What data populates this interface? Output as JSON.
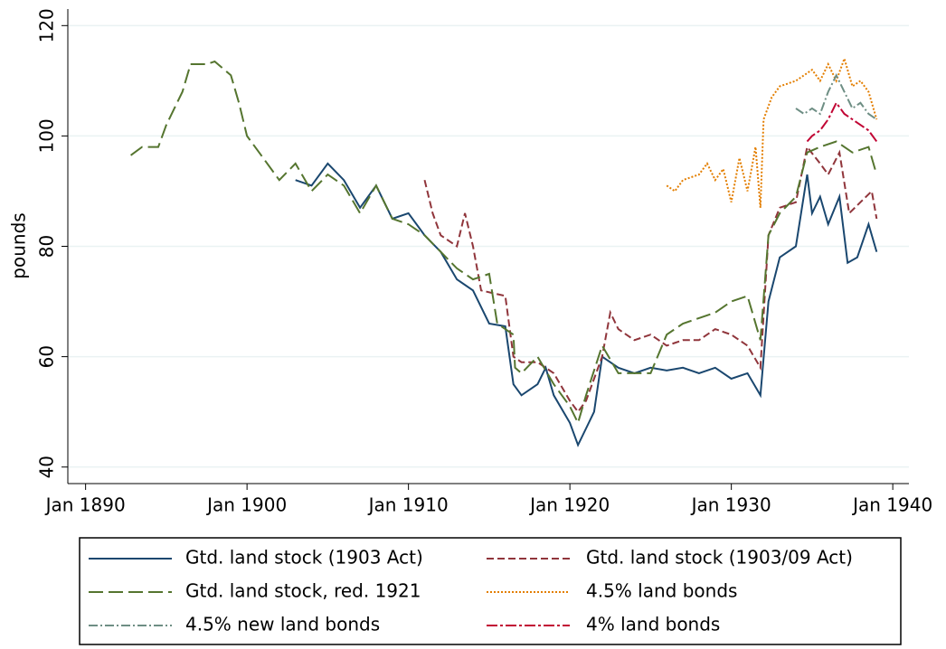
{
  "chart_data": {
    "type": "line",
    "ylabel": "pounds",
    "xlim": [
      1888.9,
      1941
    ],
    "ylim": [
      37,
      123
    ],
    "xticks": [
      {
        "value": 1890,
        "label": "Jan 1890"
      },
      {
        "value": 1900,
        "label": "Jan 1900"
      },
      {
        "value": 1910,
        "label": "Jan 1910"
      },
      {
        "value": 1920,
        "label": "Jan 1920"
      },
      {
        "value": 1930,
        "label": "Jan 1930"
      },
      {
        "value": 1940,
        "label": "Jan 1940"
      }
    ],
    "yticks": [
      40,
      60,
      80,
      100,
      120
    ],
    "grid": true,
    "series": [
      {
        "name": "Gtd. land stock (1903 Act)",
        "color": "#1a476f",
        "dash": "none",
        "x": [
          1903,
          1904,
          1905,
          1906,
          1907,
          1908,
          1909,
          1910,
          1911,
          1912,
          1913,
          1914,
          1915,
          1916,
          1916.5,
          1917,
          1918,
          1918.5,
          1919,
          1920,
          1920.5,
          1921,
          1921.5,
          1922,
          1923,
          1924,
          1925,
          1926,
          1927,
          1928,
          1929,
          1930,
          1931,
          1931.8,
          1932.3,
          1933,
          1934,
          1934.7,
          1935,
          1935.5,
          1936,
          1936.7,
          1937.2,
          1937.8,
          1938.5,
          1939
        ],
        "values": [
          92,
          91,
          95,
          92,
          87,
          91,
          85,
          86,
          82,
          79,
          74,
          72,
          66,
          65.5,
          55,
          53,
          55,
          58,
          53,
          48,
          44,
          47,
          50,
          60,
          58,
          57,
          58,
          57.5,
          58,
          57,
          58,
          56,
          57,
          53,
          70,
          78,
          80,
          93,
          86,
          89,
          84,
          89,
          77,
          78,
          84,
          79
        ]
      },
      {
        "name": "Gtd. land stock (1903/09 Act)",
        "color": "#90353b",
        "dash": "8,4",
        "x": [
          1911,
          1911.5,
          1912,
          1913,
          1913.5,
          1914,
          1914.5,
          1916,
          1916.5,
          1917,
          1918,
          1919,
          1920,
          1920.5,
          1921,
          1922,
          1922.5,
          1923,
          1924,
          1925,
          1926,
          1927,
          1928,
          1929,
          1930,
          1931,
          1931.8,
          1932.3,
          1933,
          1934,
          1934.7,
          1935.5,
          1936,
          1936.7,
          1937.3,
          1938,
          1938.7,
          1939
        ],
        "values": [
          92,
          86,
          82,
          80,
          86,
          80,
          72,
          71,
          60,
          59,
          59,
          57,
          52,
          50,
          52,
          60,
          68,
          65,
          63,
          64,
          62,
          63,
          63,
          65,
          64,
          62,
          58,
          82,
          87,
          88,
          98,
          95,
          93,
          97,
          86,
          88,
          90,
          85
        ]
      },
      {
        "name": "Gtd. land stock, red. 1921",
        "color": "#55752f",
        "dash": "16,6",
        "x": [
          1892.8,
          1893.5,
          1894.5,
          1895,
          1896,
          1896.5,
          1897.5,
          1898,
          1899,
          1899.5,
          1900,
          1901,
          1902,
          1903,
          1904,
          1905,
          1906,
          1907,
          1908,
          1909,
          1910,
          1911,
          1912,
          1913,
          1914,
          1915,
          1915.5,
          1916.5,
          1916.6,
          1917,
          1918,
          1919,
          1920,
          1920.5,
          1921,
          1922,
          1923,
          1924,
          1925,
          1926,
          1927,
          1928,
          1929,
          1930,
          1931,
          1931.8,
          1932.3,
          1933,
          1934,
          1934.7,
          1935.5,
          1936.5,
          1937.5,
          1938.5,
          1939
        ],
        "values": [
          96.5,
          98,
          98,
          102,
          108,
          113,
          113,
          113.5,
          111,
          106,
          100,
          96,
          92,
          95,
          90,
          93,
          91,
          86,
          91,
          85,
          84,
          82,
          79,
          76,
          74,
          75,
          66,
          64,
          58,
          57,
          60,
          55,
          51,
          48,
          53,
          62,
          57,
          57,
          57,
          64,
          66,
          67,
          68,
          70,
          71,
          63,
          82,
          86,
          89,
          97,
          98,
          99,
          97,
          98,
          93
        ]
      },
      {
        "name": "4.5% land bonds",
        "color": "#e37e00",
        "dash": "2,2",
        "x": [
          1926,
          1926.5,
          1927,
          1928,
          1928.5,
          1929,
          1929.5,
          1930,
          1930.5,
          1931,
          1931.5,
          1931.8,
          1932,
          1932.5,
          1933,
          1934,
          1935,
          1935.5,
          1936,
          1936.5,
          1937,
          1937.5,
          1938,
          1938.5,
          1939
        ],
        "values": [
          91,
          90,
          92,
          93,
          95,
          92,
          94,
          88,
          96,
          90,
          98,
          87,
          103,
          107,
          109,
          110,
          112,
          110,
          113,
          110,
          114,
          109,
          110,
          108,
          103
        ]
      },
      {
        "name": "4.5% new land bonds",
        "color": "#6e8e84",
        "dash": "10,3,2,3",
        "x": [
          1934,
          1934.5,
          1935,
          1935.5,
          1936,
          1936.5,
          1937,
          1937.5,
          1938,
          1938.5,
          1939
        ],
        "values": [
          105,
          104,
          105,
          104,
          108,
          111,
          108,
          105,
          106,
          104,
          103
        ]
      },
      {
        "name": "4% land bonds",
        "color": "#c10534",
        "dash": "12,3,3,3",
        "x": [
          1934.7,
          1935,
          1935.5,
          1936,
          1936.5,
          1937,
          1937.5,
          1938,
          1938.5,
          1939
        ],
        "values": [
          99,
          100,
          101,
          103,
          106,
          104,
          103,
          102,
          101,
          99
        ]
      }
    ]
  }
}
